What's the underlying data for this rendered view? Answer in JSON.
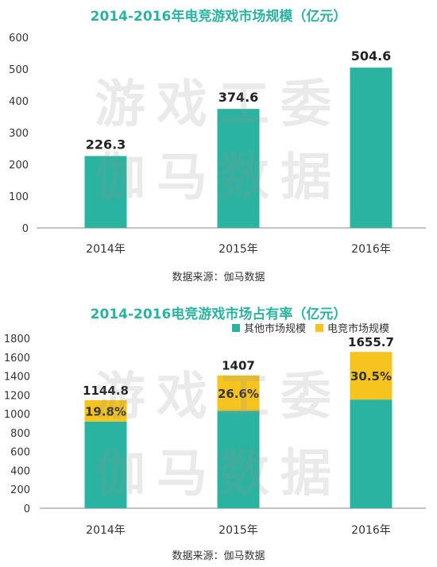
{
  "colors": {
    "teal": "#2ab3a0",
    "yellow": "#f7c41f",
    "axis": "#888888",
    "title": "#2ab3a0"
  },
  "watermark": {
    "line1": "游戏工委",
    "line2": "伽马数据"
  },
  "chart_data": [
    {
      "type": "bar",
      "title": "2014-2016年电竞游戏市场规模（亿元）",
      "categories": [
        "2014年",
        "2015年",
        "2016年"
      ],
      "values": [
        226.3,
        374.6,
        504.6
      ],
      "value_labels": [
        "226.3",
        "374.6",
        "504.6"
      ],
      "ylim": [
        0,
        600
      ],
      "yticks": [
        "0",
        "100",
        "200",
        "300",
        "400",
        "500",
        "600"
      ],
      "source": "数据来源：伽马数据",
      "grid": false
    },
    {
      "type": "bar",
      "stacked": true,
      "title": "2014-2016电竞游戏市场占有率（亿元）",
      "categories": [
        "2014年",
        "2015年",
        "2016年"
      ],
      "totals": [
        1144.8,
        1407,
        1655.7
      ],
      "total_labels": [
        "1144.8",
        "1407",
        "1655.7"
      ],
      "series": [
        {
          "name": "其他市场规模",
          "values": [
            918.5,
            1032.4,
            1151.1
          ]
        },
        {
          "name": "电竞市场规模",
          "values": [
            226.3,
            374.6,
            504.6
          ],
          "labels": [
            "19.8%",
            "26.6%",
            "30.5%"
          ]
        }
      ],
      "ylim": [
        0,
        1800
      ],
      "yticks": [
        "0",
        "200",
        "400",
        "600",
        "800",
        "1000",
        "1200",
        "1400",
        "1600",
        "1800"
      ],
      "legend_position": "top-right",
      "source": "数据来源：伽马数据",
      "grid": false
    }
  ]
}
